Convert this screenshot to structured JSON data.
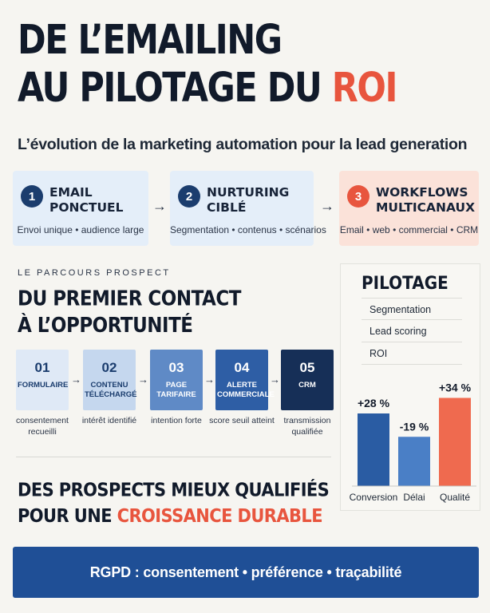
{
  "title": {
    "line1": "DE L’EMAILING",
    "line2_prefix": "AU PILOTAGE DU ",
    "line2_accent": "ROI"
  },
  "subtitle": "L’évolution de la marketing automation pour la lead generation",
  "steps": [
    {
      "num": "1",
      "title1": "EMAIL",
      "title2": "PONCTUEL",
      "desc": "Envoi unique • audience large"
    },
    {
      "num": "2",
      "title1": "NURTURING",
      "title2": "CIBLÉ",
      "desc": "Segmentation • contenus • scénarios"
    },
    {
      "num": "3",
      "title1": "WORKFLOWS",
      "title2": "MULTICANAUX",
      "desc": "Email • web • commercial • CRM"
    }
  ],
  "arrow_glyph": "→",
  "parcours": {
    "label": "LE PARCOURS PROSPECT",
    "title1": "DU PREMIER CONTACT",
    "title2": "À L’OPPORTUNITÉ"
  },
  "funnel": [
    {
      "num": "01",
      "label1": "FORMULAIRE",
      "label2": "",
      "caption1": "consentement",
      "caption2": "recueilli"
    },
    {
      "num": "02",
      "label1": "CONTENU",
      "label2": "TÉLÉCHARGÉ",
      "caption1": "intérêt identifié",
      "caption2": ""
    },
    {
      "num": "03",
      "label1": "PAGE",
      "label2": "TARIFAIRE",
      "caption1": "intention forte",
      "caption2": ""
    },
    {
      "num": "04",
      "label1": "ALERTE",
      "label2": "COMMERCIALE",
      "caption1": "score seuil atteint",
      "caption2": ""
    },
    {
      "num": "05",
      "label1": "CRM",
      "label2": "",
      "caption1": "transmission",
      "caption2": "qualifiée"
    }
  ],
  "bottom": {
    "line1": "DES PROSPECTS MIEUX QUALIFIÉS",
    "line2_prefix": "POUR UNE ",
    "line2_accent": "CROISSANCE DURABLE"
  },
  "panel": {
    "title": "PILOTAGE",
    "items": [
      "Segmentation",
      "Lead scoring",
      "ROI"
    ]
  },
  "chart_data": {
    "type": "bar",
    "categories": [
      "Conversion",
      "Délai",
      "Qualité"
    ],
    "values": [
      28,
      -19,
      34
    ],
    "labels": [
      "+28 %",
      "-19 %",
      "+34 %"
    ],
    "colors": [
      "#2a5ca3",
      "#4a7fc6",
      "#ef6a4f"
    ]
  },
  "banner": "RGPD : consentement • préférence • traçabilité",
  "colors": {
    "navy": "#111a2a",
    "accent": "#e8553e",
    "blue": "#1f4f96"
  }
}
